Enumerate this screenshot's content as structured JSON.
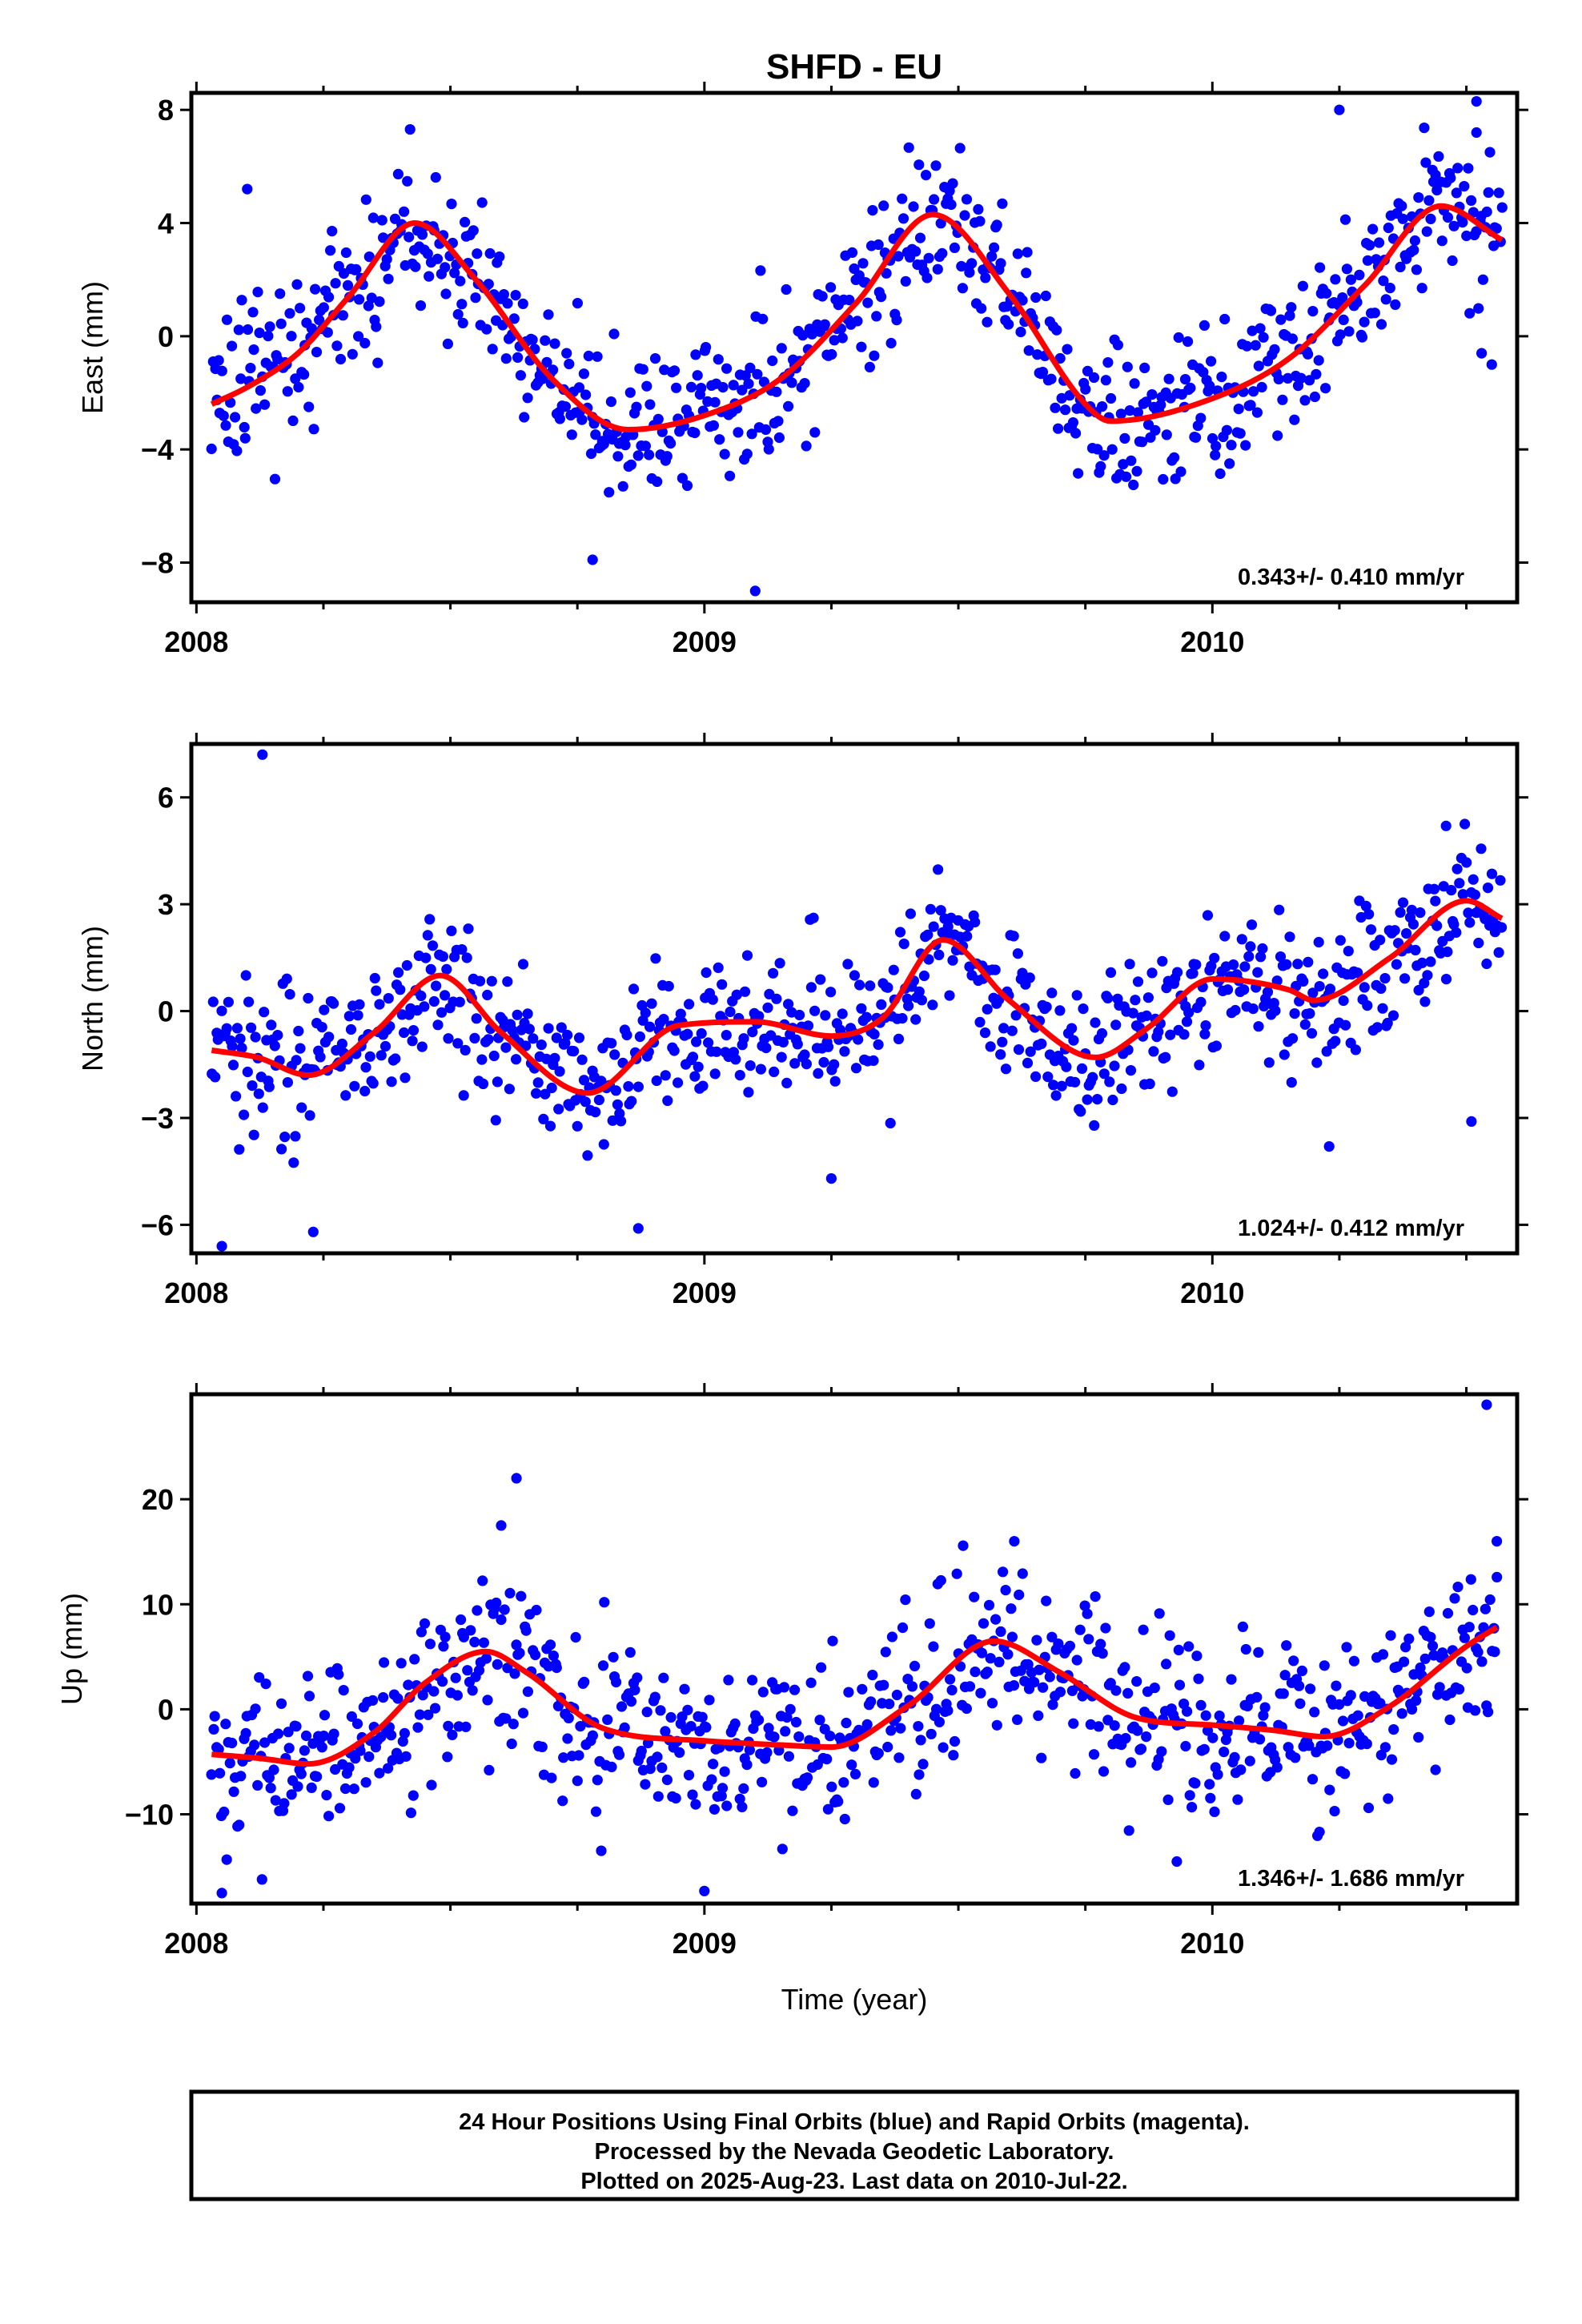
{
  "title": "SHFD - EU",
  "xlabel": "Time (year)",
  "footer": {
    "line1": "24 Hour Positions Using Final Orbits (blue) and Rapid Orbits (magenta).",
    "line2": "Processed by the Nevada Geodetic Laboratory.",
    "line3": "Plotted on 2025-Aug-23. Last data on 2010-Jul-22."
  },
  "colors": {
    "points": "#0000ff",
    "fit": "#ff0000",
    "frame": "#000000"
  },
  "chart_data": [
    {
      "type": "scatter",
      "component": "east",
      "ylabel": "East (mm)",
      "rate_label": "0.343+/- 0.410 mm/yr",
      "xlim": [
        2007.99,
        2010.6
      ],
      "ylim": [
        -9.4,
        8.6
      ],
      "x_ticks": [
        2008,
        2009,
        2010
      ],
      "x_tick_labels": [
        "2008",
        "2009",
        "2010"
      ],
      "y_ticks": [
        -8,
        -4,
        0,
        4,
        8
      ],
      "y_tick_labels": [
        "−8",
        "−4",
        "0",
        "4",
        "8"
      ],
      "grid": false,
      "fit_curve": {
        "name": "model fit",
        "x": [
          2008.03,
          2008.1,
          2008.2,
          2008.3,
          2008.43,
          2008.55,
          2008.7,
          2008.85,
          2009.0,
          2009.15,
          2009.3,
          2009.45,
          2009.6,
          2009.75,
          2009.8,
          2010.0,
          2010.15,
          2010.3,
          2010.45,
          2010.57
        ],
        "y": [
          -2.4,
          -1.8,
          -0.6,
          1.4,
          4.0,
          2.0,
          -1.5,
          -3.3,
          -2.8,
          -1.5,
          1.2,
          4.3,
          1.5,
          -2.4,
          -3.0,
          -2.2,
          -0.8,
          1.8,
          4.6,
          3.4
        ]
      },
      "points": {
        "count": 760,
        "scatter_sd": 1.3,
        "outliers": [
          [
            2009.1,
            -9.0
          ],
          [
            2010.25,
            8.0
          ],
          [
            2010.52,
            8.3
          ],
          [
            2010.52,
            7.2
          ],
          [
            2008.78,
            -7.9
          ],
          [
            2008.1,
            5.2
          ],
          [
            2010.53,
            -0.6
          ],
          [
            2010.55,
            -1.0
          ]
        ]
      }
    },
    {
      "type": "scatter",
      "component": "north",
      "ylabel": "North (mm)",
      "rate_label": "1.024+/- 0.412 mm/yr",
      "xlim": [
        2007.99,
        2010.6
      ],
      "ylim": [
        -6.8,
        7.5
      ],
      "x_ticks": [
        2008,
        2009,
        2010
      ],
      "x_tick_labels": [
        "2008",
        "2009",
        "2010"
      ],
      "y_ticks": [
        -6,
        -3,
        0,
        3,
        6
      ],
      "y_tick_labels": [
        "−6",
        "−3",
        "0",
        "3",
        "6"
      ],
      "grid": false,
      "fit_curve": {
        "name": "model fit",
        "x": [
          2008.03,
          2008.12,
          2008.22,
          2008.35,
          2008.48,
          2008.6,
          2008.77,
          2008.95,
          2009.1,
          2009.25,
          2009.35,
          2009.47,
          2009.6,
          2009.77,
          2009.87,
          2010.0,
          2010.15,
          2010.2,
          2010.35,
          2010.5,
          2010.57
        ],
        "y": [
          -1.1,
          -1.3,
          -1.8,
          -0.6,
          1.0,
          -0.6,
          -2.3,
          -0.4,
          -0.3,
          -0.7,
          -0.2,
          2.0,
          0.3,
          -1.3,
          -0.5,
          0.9,
          0.6,
          0.3,
          1.5,
          3.1,
          2.6
        ]
      },
      "points": {
        "count": 760,
        "scatter_sd": 1.0,
        "outliers": [
          [
            2008.13,
            7.2
          ],
          [
            2008.05,
            -6.6
          ],
          [
            2008.23,
            -6.2
          ],
          [
            2008.87,
            -6.1
          ],
          [
            2009.25,
            -4.7
          ],
          [
            2010.46,
            5.2
          ],
          [
            2010.51,
            -3.1
          ],
          [
            2010.23,
            -3.8
          ]
        ]
      }
    },
    {
      "type": "scatter",
      "component": "up",
      "ylabel": "Up (mm)",
      "rate_label": "1.346+/- 1.686 mm/yr",
      "xlim": [
        2007.99,
        2010.6
      ],
      "ylim": [
        -18.5,
        30.0
      ],
      "x_ticks": [
        2008,
        2009,
        2010
      ],
      "x_tick_labels": [
        "2008",
        "2009",
        "2010"
      ],
      "y_ticks": [
        -10,
        0,
        10,
        20
      ],
      "y_tick_labels": [
        "−10",
        "0",
        "10",
        "20"
      ],
      "grid": false,
      "fit_curve": {
        "name": "model fit",
        "x": [
          2008.03,
          2008.13,
          2008.22,
          2008.35,
          2008.45,
          2008.57,
          2008.65,
          2008.8,
          2009.0,
          2009.15,
          2009.25,
          2009.4,
          2009.57,
          2009.7,
          2009.85,
          2010.0,
          2010.12,
          2010.22,
          2010.35,
          2010.5,
          2010.56
        ],
        "y": [
          -4.3,
          -4.7,
          -5.2,
          -2.2,
          2.5,
          5.5,
          3.5,
          -1.8,
          -3.0,
          -3.4,
          -3.6,
          0.3,
          6.5,
          3.5,
          -0.8,
          -1.5,
          -2.0,
          -2.6,
          0.3,
          6.0,
          7.8
        ]
      },
      "points": {
        "count": 760,
        "scatter_sd": 4.0,
        "outliers": [
          [
            2010.54,
            29.0
          ],
          [
            2008.63,
            22.0
          ],
          [
            2008.6,
            17.5
          ],
          [
            2009.0,
            -17.3
          ],
          [
            2008.05,
            -17.5
          ],
          [
            2009.93,
            -14.5
          ],
          [
            2010.56,
            16.0
          ],
          [
            2009.61,
            16.0
          ]
        ]
      }
    }
  ]
}
